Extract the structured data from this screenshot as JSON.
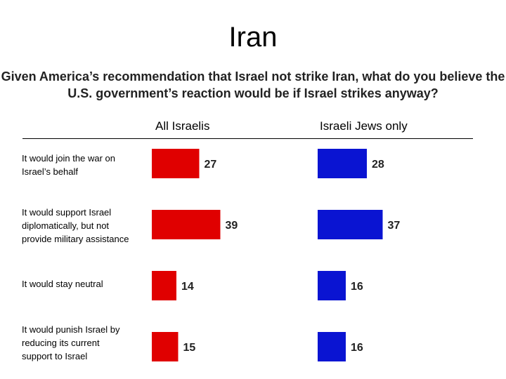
{
  "title": "Iran",
  "question": [
    "Given America’s recommendation that Israel not strike Iran, what do you believe the",
    "U.S. government’s reaction would be if Israel strikes anyway?"
  ],
  "colors": {
    "all_israelis": "#e00000",
    "jews_only": "#0a14d2"
  },
  "chart_data": {
    "type": "bar",
    "orientation": "horizontal",
    "categories": [
      [
        "It would join the war on",
        "Israel’s behalf"
      ],
      [
        "It would support Israel",
        "diplomatically, but not",
        "provide military assistance"
      ],
      [
        "It would stay neutral"
      ],
      [
        "It would punish Israel by",
        "reducing its current",
        "support to Israel"
      ]
    ],
    "series": [
      {
        "name": "All Israelis",
        "values": [
          27,
          39,
          14,
          15
        ],
        "color": "#e00000"
      },
      {
        "name": "Israeli Jews only",
        "values": [
          28,
          37,
          16,
          16
        ],
        "color": "#0a14d2"
      }
    ],
    "data_labels": true,
    "axes_visible": false
  }
}
